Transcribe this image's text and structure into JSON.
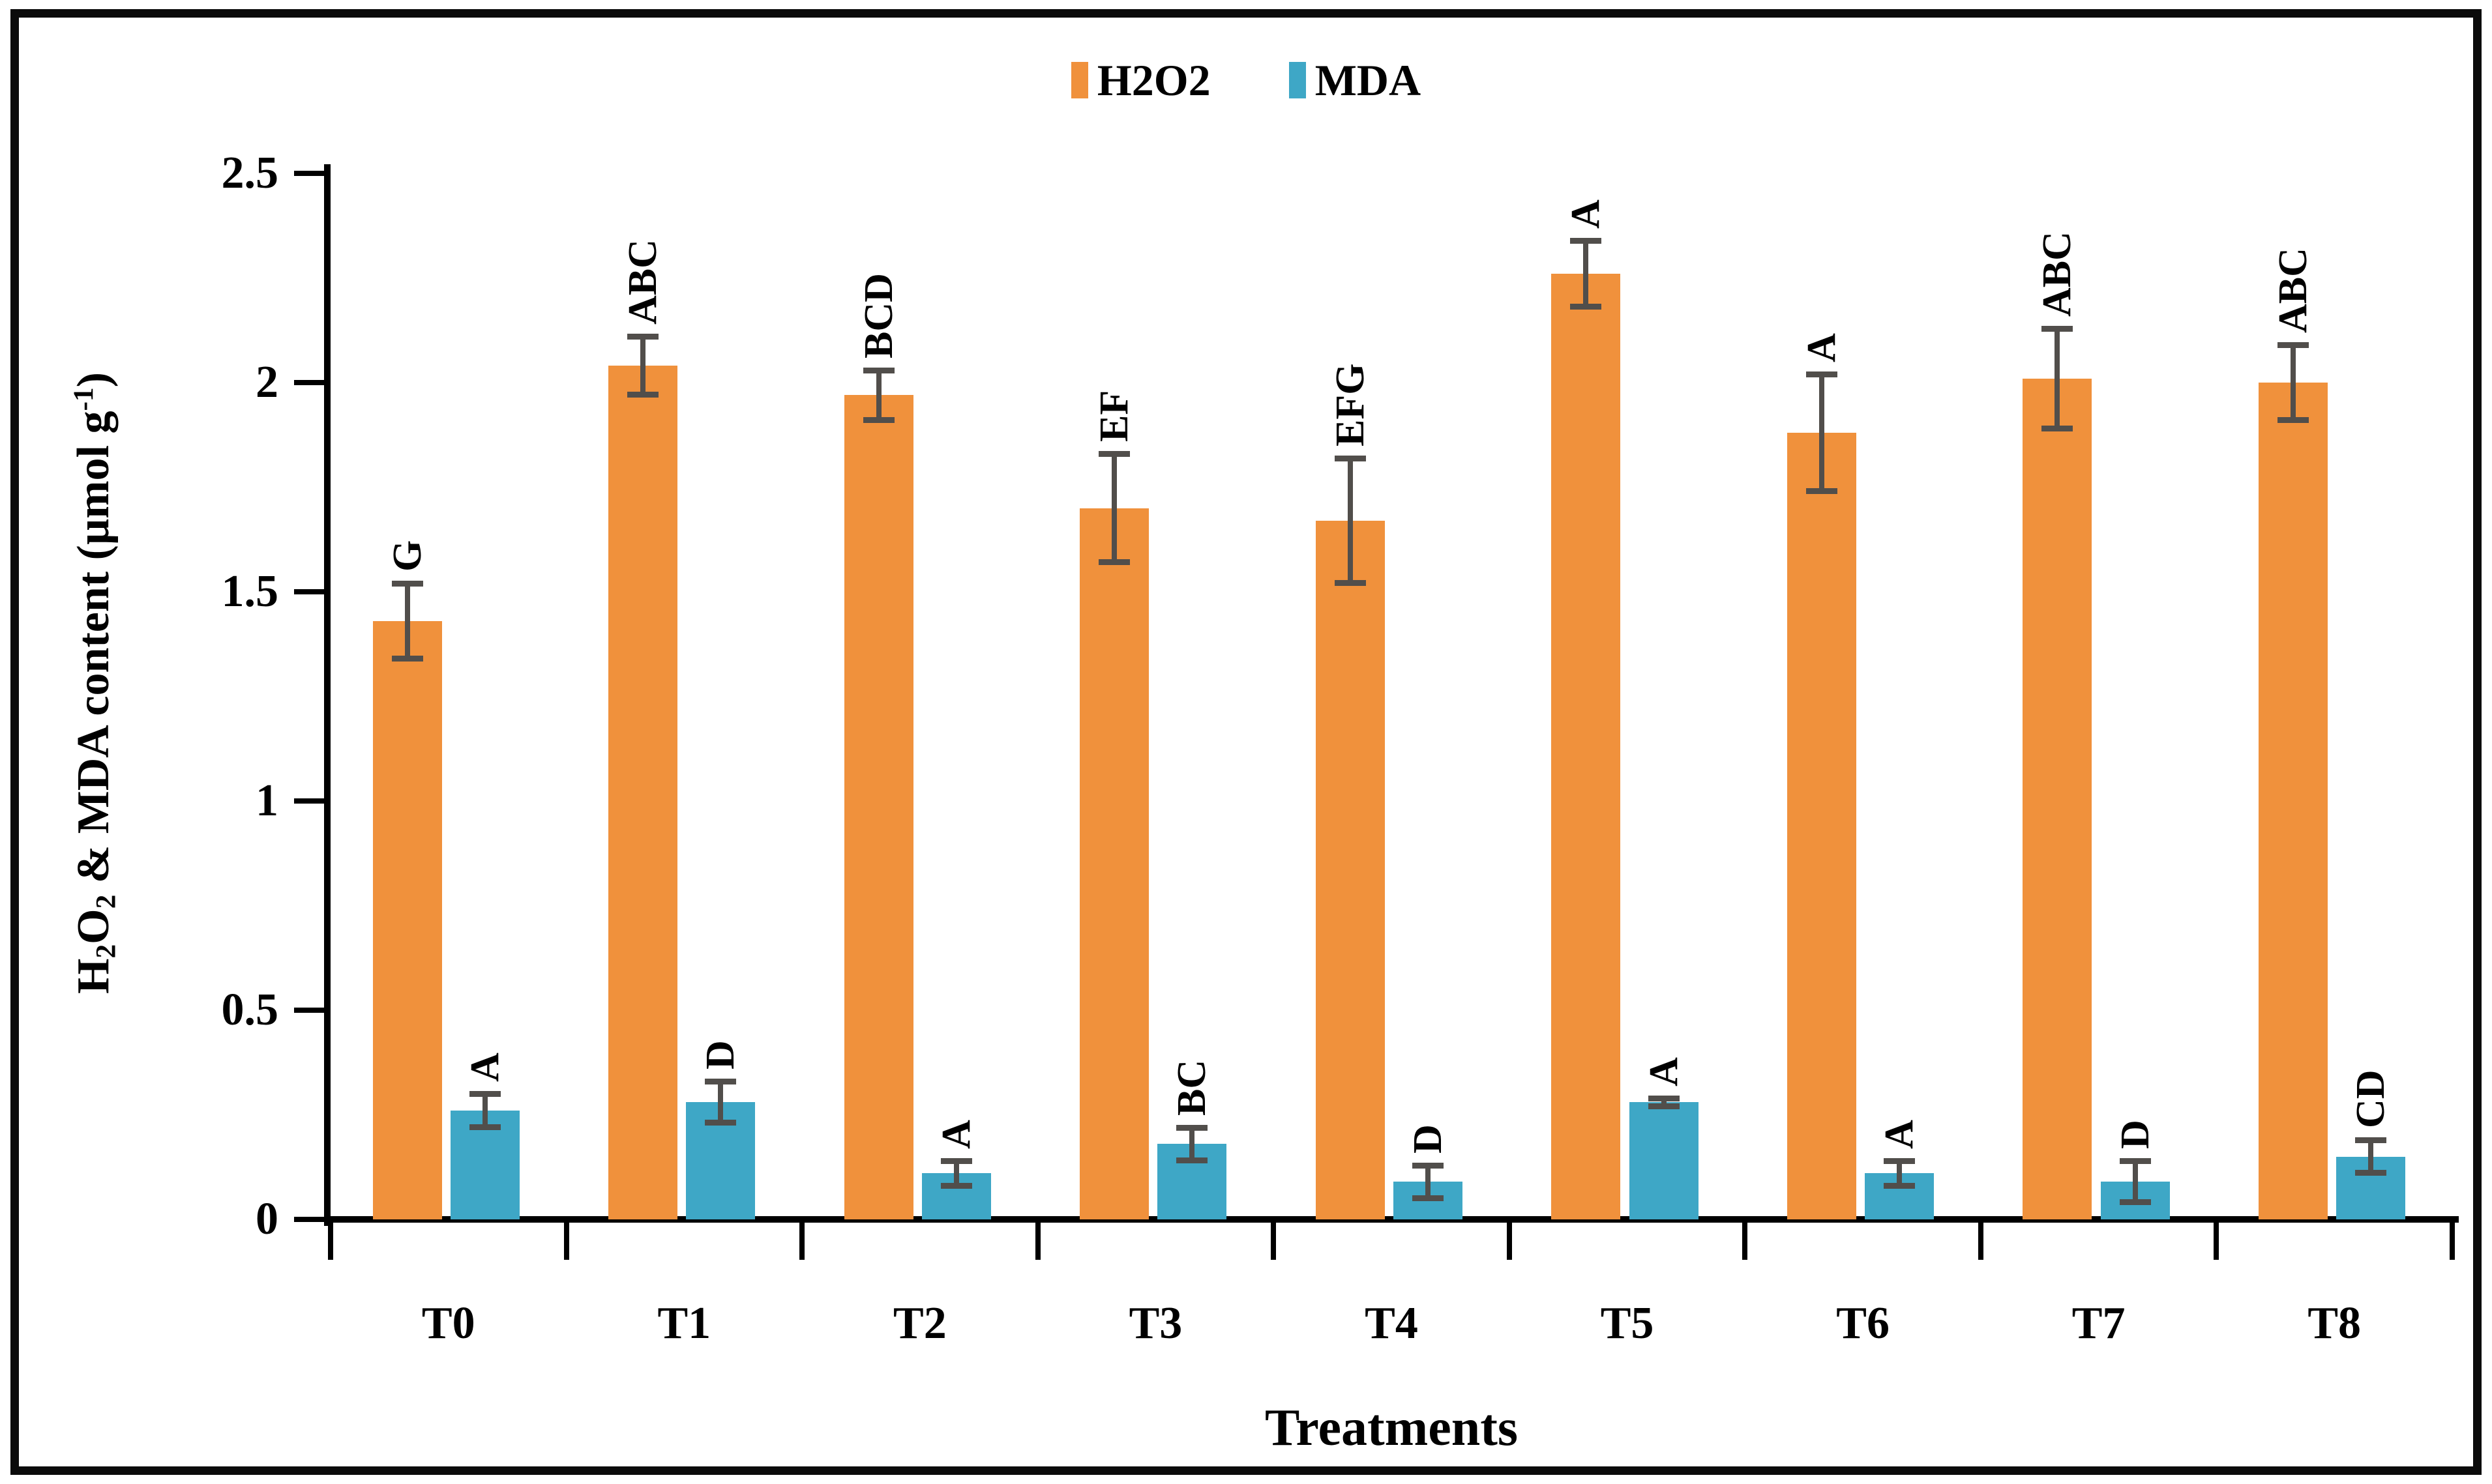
{
  "legend": {
    "items": [
      {
        "label": "H2O2",
        "color": "#F0913C"
      },
      {
        "label": "MDA",
        "color": "#3EA7C6"
      }
    ]
  },
  "axes": {
    "x_title": "Treatments",
    "y_tick_labels": [
      "0",
      "0.5",
      "1",
      "1.5",
      "2",
      "2.5"
    ],
    "y_title_segments": [
      {
        "text": "H"
      },
      {
        "text": "2",
        "style": "sub"
      },
      {
        "text": "O"
      },
      {
        "text": "2",
        "style": "sub"
      },
      {
        "text": " & MDA content (µmol g"
      },
      {
        "text": "-1",
        "style": "sup"
      },
      {
        "text": ")"
      }
    ]
  },
  "chart_data": {
    "type": "bar",
    "title": "",
    "xlabel": "Treatments",
    "ylabel": "H2O2 & MDA content (µmol g-1)",
    "ylim": [
      0,
      2.5
    ],
    "ytick_step": 0.5,
    "grid": false,
    "legend_position": "top-center",
    "error_bar_color": "#514E4B",
    "categories": [
      "T0",
      "T1",
      "T2",
      "T3",
      "T4",
      "T5",
      "T6",
      "T7",
      "T8"
    ],
    "series": [
      {
        "name": "H2O2",
        "color": "#F0913C",
        "values": [
          1.43,
          2.04,
          1.97,
          1.7,
          1.67,
          2.26,
          1.88,
          2.01,
          2.0
        ],
        "errors": [
          0.09,
          0.07,
          0.06,
          0.13,
          0.15,
          0.08,
          0.14,
          0.12,
          0.09
        ],
        "letters": [
          "G",
          "ABC",
          "BCD",
          "EF",
          "EFG",
          "A",
          "A",
          "ABC",
          "ABC"
        ]
      },
      {
        "name": "MDA",
        "color": "#3EA7C6",
        "values": [
          0.26,
          0.28,
          0.11,
          0.18,
          0.09,
          0.28,
          0.11,
          0.09,
          0.15
        ],
        "errors": [
          0.04,
          0.05,
          0.03,
          0.04,
          0.04,
          0.01,
          0.03,
          0.05,
          0.04
        ],
        "letters": [
          "A",
          "D",
          "A",
          "BC",
          "D",
          "A",
          "A",
          "D",
          "CD"
        ]
      }
    ]
  }
}
